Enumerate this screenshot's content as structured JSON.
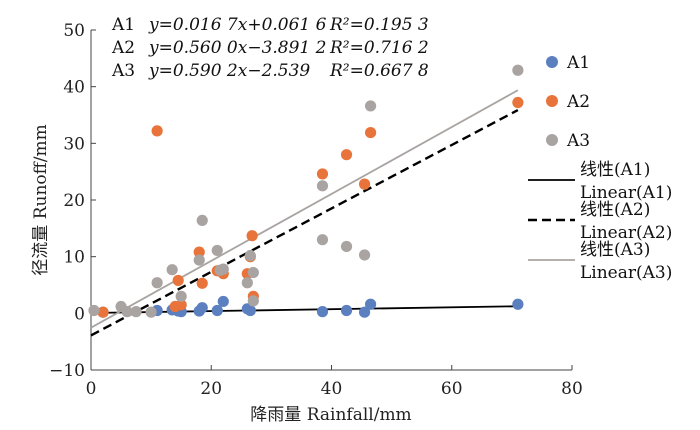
{
  "chart_data": {
    "type": "scatter",
    "xlabel": "降雨量 Rainfall/mm",
    "ylabel": "径流量 Runoff/mm",
    "xlim": [
      0,
      80
    ],
    "ylim": [
      -10,
      50
    ],
    "xticks": [
      "0",
      "20",
      "40",
      "60",
      "80"
    ],
    "yticks": [
      "−10",
      "0",
      "10",
      "20",
      "30",
      "40",
      "50"
    ],
    "equations": [
      {
        "name": "A1",
        "eq": "y=0.016 7x+0.061 6",
        "r2_label": "R²=0.195 3"
      },
      {
        "name": "A2",
        "eq": "y=0.560 0x−3.891 2",
        "r2_label": "R²=0.716 2"
      },
      {
        "name": "A3",
        "eq": "y=0.590 2x−2.539",
        "r2_label": "R²=0.667 8"
      }
    ],
    "series": [
      {
        "name": "A1",
        "color": "#5b7fbf",
        "points": [
          [
            2,
            0.2
          ],
          [
            11,
            0.5
          ],
          [
            13.5,
            0.6
          ],
          [
            14.5,
            0.4
          ],
          [
            15,
            0.3
          ],
          [
            18,
            0.4
          ],
          [
            18.5,
            1.0
          ],
          [
            21,
            0.5
          ],
          [
            22,
            2.1
          ],
          [
            26,
            0.8
          ],
          [
            26.5,
            0.5
          ],
          [
            38.5,
            0.3
          ],
          [
            42.5,
            0.5
          ],
          [
            45.5,
            0.2
          ],
          [
            46.5,
            1.6
          ],
          [
            71,
            1.6
          ]
        ]
      },
      {
        "name": "A2",
        "color": "#e8743b",
        "points": [
          [
            2,
            0.2
          ],
          [
            11,
            32.2
          ],
          [
            14,
            1.2
          ],
          [
            14.5,
            5.8
          ],
          [
            15,
            1.5
          ],
          [
            18,
            10.8
          ],
          [
            18.5,
            5.3
          ],
          [
            21,
            7.5
          ],
          [
            22,
            7.0
          ],
          [
            26,
            7.0
          ],
          [
            26.5,
            10.0
          ],
          [
            26.8,
            13.7
          ],
          [
            27,
            3.0
          ],
          [
            38.5,
            24.6
          ],
          [
            42.5,
            28.0
          ],
          [
            45.5,
            22.8
          ],
          [
            46.5,
            31.9
          ],
          [
            71,
            37.2
          ]
        ]
      },
      {
        "name": "A3",
        "color": "#a9a4a2",
        "points": [
          [
            0.5,
            0.5
          ],
          [
            5,
            1.2
          ],
          [
            6,
            0.3
          ],
          [
            7.5,
            0.3
          ],
          [
            10,
            0.2
          ],
          [
            11,
            5.4
          ],
          [
            13.5,
            7.7
          ],
          [
            15,
            3.0
          ],
          [
            18,
            9.4
          ],
          [
            18.5,
            16.4
          ],
          [
            21,
            11.1
          ],
          [
            21.5,
            7.6
          ],
          [
            22,
            7.8
          ],
          [
            26,
            5.4
          ],
          [
            26.5,
            10.2
          ],
          [
            27,
            7.2
          ],
          [
            27,
            2.2
          ],
          [
            38.5,
            22.5
          ],
          [
            38.5,
            13.0
          ],
          [
            42.5,
            11.8
          ],
          [
            45.5,
            10.3
          ],
          [
            46.5,
            36.6
          ],
          [
            71,
            42.9
          ]
        ]
      }
    ],
    "trendlines": [
      {
        "name": "A1",
        "slope": 0.0167,
        "intercept": 0.0616,
        "x_range": [
          0,
          71
        ],
        "color": "#000000",
        "dash": "solid"
      },
      {
        "name": "A2",
        "slope": 0.56,
        "intercept": -3.8912,
        "x_range": [
          0,
          71
        ],
        "color": "#000000",
        "dash": "dashed"
      },
      {
        "name": "A3",
        "slope": 0.5902,
        "intercept": -2.539,
        "x_range": [
          0,
          71
        ],
        "color": "#a9a4a2",
        "dash": "solid"
      }
    ],
    "legend": [
      {
        "label": "A1",
        "kind": "marker",
        "color": "#5b7fbf"
      },
      {
        "label": "A2",
        "kind": "marker",
        "color": "#e8743b"
      },
      {
        "label": "A3",
        "kind": "marker",
        "color": "#a9a4a2"
      },
      {
        "label": "线性(A1)",
        "label2": "Linear(A1)",
        "kind": "line",
        "color": "#000000",
        "dash": "solid"
      },
      {
        "label": "线性(A2)",
        "label2": "Linear(A2)",
        "kind": "line",
        "color": "#000000",
        "dash": "dashed"
      },
      {
        "label": "线性(A3)",
        "label2": "Linear(A3)",
        "kind": "line",
        "color": "#a9a4a2",
        "dash": "solid"
      }
    ]
  }
}
